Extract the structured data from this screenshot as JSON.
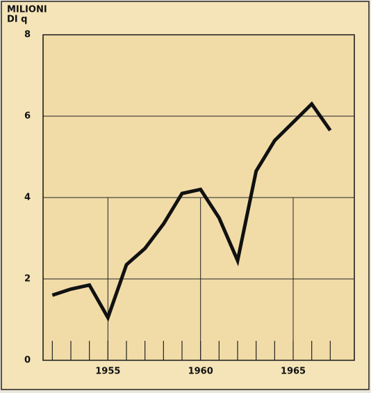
{
  "chart_data": {
    "type": "line",
    "ylabel": [
      "MILIONI",
      "DI q"
    ],
    "x": [
      1952,
      1953,
      1954,
      1955,
      1956,
      1957,
      1958,
      1959,
      1960,
      1961,
      1962,
      1963,
      1964,
      1965,
      1966,
      1967
    ],
    "series": [
      {
        "color": "#111111",
        "values": [
          1.6,
          1.75,
          1.85,
          1.05,
          2.35,
          2.75,
          3.35,
          4.1,
          4.2,
          3.5,
          2.45,
          4.65,
          5.4,
          5.85,
          6.3,
          5.65
        ]
      }
    ],
    "xlim": [
      1951.5,
      1968.3
    ],
    "xticks": [
      1955,
      1960,
      1965
    ],
    "ylim": [
      0,
      8
    ],
    "yticks": [
      0,
      2,
      4,
      6,
      8
    ],
    "grid": true
  }
}
